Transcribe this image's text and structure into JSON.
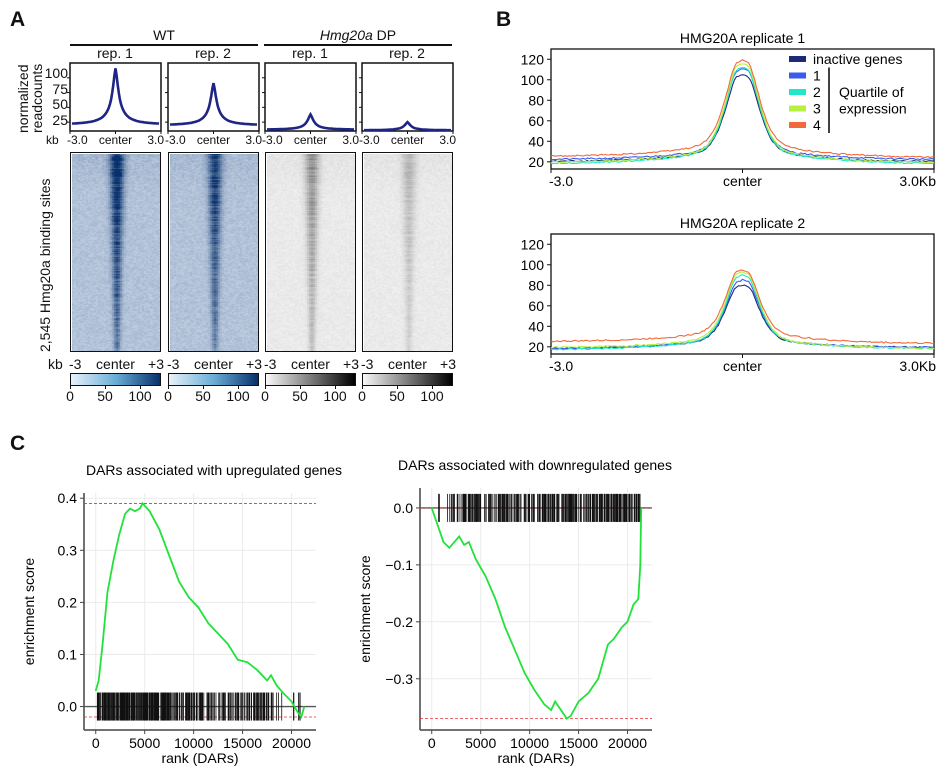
{
  "panels": {
    "A": {
      "letter": "A",
      "group_labels": [
        {
          "text": "WT",
          "italic_part": "",
          "rest": "WT"
        },
        {
          "text": "Hmg20a DP",
          "italic_part": "Hmg20a",
          "rest": " DP"
        }
      ],
      "ylabel_line1": "normalized",
      "ylabel_line2": "readcounts",
      "profile_yticks": [
        "100",
        "75",
        "50",
        "25"
      ],
      "kb_label": "kb",
      "profile_xticks": [
        "-3.0",
        "center",
        "3.0"
      ],
      "heatmap_xticks": [
        "-3",
        "center",
        "+3"
      ],
      "heatmap_ylabel": "2,545 Hmg20a binding sites",
      "colorbar_ticks": [
        "0",
        "50",
        "100"
      ],
      "profile_color": "#1f2585",
      "blue_scale": [
        "#e8f1fb",
        "#08306b"
      ],
      "gray_scale": [
        "#f8f8f8",
        "#000000"
      ]
    },
    "B": {
      "letter": "B",
      "legend_bracket_label_1": "Quartile of",
      "legend_bracket_label_2": "expression"
    },
    "C": {
      "letter": "C"
    }
  },
  "chart_data": [
    {
      "id": "A-profile-WT-rep1",
      "type": "line",
      "title": "rep. 1",
      "group": "WT",
      "xlabel": "kb",
      "x_ticks": [
        "-3.0",
        "center",
        "3.0"
      ],
      "ylim": [
        10,
        125
      ],
      "y_ticks": [
        25,
        50,
        75,
        100
      ],
      "baseline": 20,
      "peak": 116
    },
    {
      "id": "A-profile-WT-rep2",
      "type": "line",
      "title": "rep. 2",
      "group": "WT",
      "xlabel": "kb",
      "x_ticks": [
        "-3.0",
        "center",
        "3.0"
      ],
      "ylim": [
        10,
        125
      ],
      "y_ticks": [
        25,
        50,
        75,
        100
      ],
      "baseline": 19,
      "peak": 91
    },
    {
      "id": "A-profile-DP-rep1",
      "type": "line",
      "title": "rep. 1",
      "group": "Hmg20a DP",
      "xlabel": "kb",
      "x_ticks": [
        "-3.0",
        "center",
        "3.0"
      ],
      "ylim": [
        10,
        125
      ],
      "y_ticks": [
        25,
        50,
        75,
        100
      ],
      "baseline": 12,
      "peak": 38
    },
    {
      "id": "A-profile-DP-rep2",
      "type": "line",
      "title": "rep. 2",
      "group": "Hmg20a DP",
      "xlabel": "kb",
      "x_ticks": [
        "-3.0",
        "center",
        "3.0"
      ],
      "ylim": [
        10,
        125
      ],
      "y_ticks": [
        25,
        50,
        75,
        100
      ],
      "baseline": 11,
      "peak": 25
    },
    {
      "id": "A-heatmaps",
      "type": "heatmap",
      "ylabel": "2,545 Hmg20a binding sites",
      "x_ticks": [
        "-3",
        "center",
        "+3"
      ],
      "columns": [
        {
          "title": "rep. 1",
          "group": "WT",
          "scale": "blue",
          "colorbar": [
            0,
            130
          ],
          "intensity": 1.0
        },
        {
          "title": "rep. 2",
          "group": "WT",
          "scale": "blue",
          "colorbar": [
            0,
            130
          ],
          "intensity": 0.85
        },
        {
          "title": "rep. 1",
          "group": "Hmg20a DP",
          "scale": "gray",
          "colorbar": [
            0,
            130
          ],
          "intensity": 0.45
        },
        {
          "title": "rep. 2",
          "group": "Hmg20a DP",
          "scale": "gray",
          "colorbar": [
            0,
            130
          ],
          "intensity": 0.25
        }
      ]
    },
    {
      "id": "B-rep1",
      "type": "line",
      "title": "HMG20A replicate 1",
      "x_ticks": [
        "-3.0",
        "center",
        "3.0Kb"
      ],
      "ylim": [
        13,
        130
      ],
      "y_ticks": [
        20,
        40,
        60,
        80,
        100,
        120
      ],
      "legend": "top-right",
      "series": [
        {
          "name": "inactive genes",
          "color": "#1c2a7a",
          "left": 20,
          "right": 20,
          "peak": 108,
          "shoulder": 40
        },
        {
          "name": "1",
          "color": "#3b5bf0",
          "left": 22,
          "right": 22,
          "peak": 114,
          "shoulder": 42
        },
        {
          "name": "2",
          "color": "#1ee8c8",
          "left": 18,
          "right": 18,
          "peak": 116,
          "shoulder": 43
        },
        {
          "name": "3",
          "color": "#b8f040",
          "left": 19,
          "right": 19,
          "peak": 120,
          "shoulder": 45
        },
        {
          "name": "4",
          "color": "#f26a3a",
          "left": 25,
          "right": 24,
          "peak": 123,
          "shoulder": 50
        }
      ]
    },
    {
      "id": "B-rep2",
      "type": "line",
      "title": "HMG20A replicate 2",
      "x_ticks": [
        "-3.0",
        "center",
        "3.0Kb"
      ],
      "ylim": [
        13,
        130
      ],
      "y_ticks": [
        20,
        40,
        60,
        80,
        100,
        120
      ],
      "series": [
        {
          "name": "inactive genes",
          "color": "#1c2a7a",
          "left": 18,
          "right": 19,
          "peak": 83,
          "shoulder": 35
        },
        {
          "name": "1",
          "color": "#3b5bf0",
          "left": 18,
          "right": 19,
          "peak": 88,
          "shoulder": 36
        },
        {
          "name": "2",
          "color": "#1ee8c8",
          "left": 17,
          "right": 18,
          "peak": 93,
          "shoulder": 37
        },
        {
          "name": "3",
          "color": "#b8f040",
          "left": 19,
          "right": 18,
          "peak": 96,
          "shoulder": 39
        },
        {
          "name": "4",
          "color": "#f26a3a",
          "left": 25,
          "right": 23,
          "peak": 98,
          "shoulder": 44
        }
      ]
    },
    {
      "id": "C-up",
      "type": "line",
      "title": "DARs associated with upregulated genes",
      "xlabel": "rank (DARs)",
      "ylabel": "enrichment score",
      "xlim": [
        -1200,
        22500
      ],
      "ylim": [
        -0.045,
        0.41
      ],
      "x_ticks": [
        0,
        5000,
        10000,
        15000,
        20000
      ],
      "y_ticks": [
        0.0,
        0.1,
        0.2,
        0.3,
        0.4
      ],
      "y_tick_labels": [
        "0.0",
        "0.1",
        "0.2",
        "0.3",
        "0.4"
      ],
      "max_es": 0.39,
      "min_es": -0.02,
      "x": [
        0,
        300,
        700,
        1200,
        1800,
        2400,
        3000,
        3500,
        4000,
        4500,
        4800,
        5500,
        6500,
        7500,
        8500,
        9500,
        10500,
        11500,
        12500,
        13500,
        14500,
        15500,
        16500,
        17500,
        17900,
        18500,
        19200,
        20000,
        20600,
        21000,
        21300
      ],
      "y": [
        0.03,
        0.05,
        0.12,
        0.22,
        0.28,
        0.33,
        0.37,
        0.38,
        0.375,
        0.38,
        0.39,
        0.375,
        0.34,
        0.29,
        0.24,
        0.21,
        0.19,
        0.16,
        0.14,
        0.12,
        0.09,
        0.085,
        0.07,
        0.05,
        0.06,
        0.04,
        0.025,
        0.01,
        -0.01,
        -0.02,
        0.0
      ],
      "hit_density": [
        [
          0,
          7800,
          1.0
        ],
        [
          7800,
          18000,
          0.55
        ],
        [
          18000,
          21300,
          0.2
        ]
      ],
      "line_color": "#22e23a"
    },
    {
      "id": "C-down",
      "type": "line",
      "title": "DARs associated with downregulated genes",
      "xlabel": "rank (DARs)",
      "ylabel": "enrichment score",
      "xlim": [
        -1200,
        22500
      ],
      "ylim": [
        -0.39,
        0.035
      ],
      "x_ticks": [
        0,
        5000,
        10000,
        15000,
        20000
      ],
      "y_ticks": [
        0.0,
        -0.1,
        -0.2,
        -0.3
      ],
      "y_tick_labels": [
        "0.0",
        "−0.1",
        "−0.2",
        "−0.3"
      ],
      "max_es": 0.0,
      "min_es": -0.37,
      "x": [
        0,
        600,
        1200,
        1800,
        2300,
        2800,
        3300,
        3800,
        4500,
        5500,
        6500,
        7500,
        8500,
        9500,
        10500,
        11500,
        12200,
        12600,
        13200,
        13800,
        14200,
        15000,
        16000,
        17000,
        18000,
        18600,
        19400,
        20000,
        20600,
        21100,
        21300,
        21400
      ],
      "y": [
        0.0,
        -0.03,
        -0.06,
        -0.07,
        -0.06,
        -0.05,
        -0.065,
        -0.06,
        -0.09,
        -0.12,
        -0.16,
        -0.21,
        -0.25,
        -0.29,
        -0.32,
        -0.345,
        -0.355,
        -0.34,
        -0.355,
        -0.37,
        -0.365,
        -0.34,
        -0.325,
        -0.3,
        -0.24,
        -0.23,
        -0.21,
        -0.2,
        -0.17,
        -0.16,
        -0.1,
        0.0
      ],
      "hit_density": [
        [
          700,
          800,
          1.0
        ],
        [
          1600,
          10500,
          0.65
        ],
        [
          10800,
          21300,
          0.75
        ]
      ],
      "line_color": "#22e23a"
    }
  ]
}
